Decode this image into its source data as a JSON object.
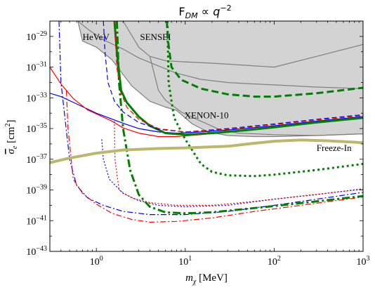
{
  "chart_data": {
    "type": "line",
    "title": "F_DM ∝ q^-2",
    "title_parts": {
      "main": "F",
      "sub": "DM",
      "rel": " ∝ ",
      "var": "q",
      "sup": "−2"
    },
    "xlabel": {
      "var": "m",
      "sub": "χ",
      "unit": " [MeV]"
    },
    "ylabel": {
      "var": "σ",
      "sub": "e",
      "unit": " [cm",
      "sup": "2",
      "close": "]"
    },
    "x_scale": "log",
    "y_scale": "log",
    "xlim": [
      0.3,
      1000
    ],
    "ylim": [
      1e-43,
      1e-28
    ],
    "x_ticks": [
      {
        "value": 1,
        "base": "10",
        "exp": "0"
      },
      {
        "value": 10,
        "base": "10",
        "exp": "1"
      },
      {
        "value": 100,
        "base": "10",
        "exp": "2"
      },
      {
        "value": 1000,
        "base": "10",
        "exp": "3"
      }
    ],
    "y_ticks": [
      {
        "value": -43,
        "base": "10",
        "exp": "−43"
      },
      {
        "value": -41,
        "base": "10",
        "exp": "−41"
      },
      {
        "value": -39,
        "base": "10",
        "exp": "−39"
      },
      {
        "value": -37,
        "base": "10",
        "exp": "−37"
      },
      {
        "value": -35,
        "base": "10",
        "exp": "−35"
      },
      {
        "value": -33,
        "base": "10",
        "exp": "−33"
      },
      {
        "value": -31,
        "base": "10",
        "exp": "−31"
      },
      {
        "value": -29,
        "base": "10",
        "exp": "−29"
      }
    ],
    "grid": false,
    "excluded_region": {
      "fill": "#d3d3d3",
      "boundary": [
        [
          0.62,
          1e-28
        ],
        [
          0.7,
          5e-30
        ],
        [
          1.0,
          2e-30
        ],
        [
          1.5,
          3e-31
        ],
        [
          2.5,
          6e-33
        ],
        [
          4.0,
          6e-34
        ],
        [
          6.0,
          2.5e-34
        ],
        [
          8.0,
          1.5e-34
        ],
        [
          12,
          2e-35
        ],
        [
          18,
          6e-36
        ],
        [
          30,
          3.5e-36
        ],
        [
          60,
          3e-36
        ],
        [
          100,
          3e-36
        ],
        [
          300,
          3.5e-36
        ],
        [
          1000,
          4.5e-36
        ]
      ],
      "inner_lines": [
        {
          "name": "HeVeV",
          "points": [
            [
              0.62,
              1e-28
            ],
            [
              0.8,
              3e-29
            ],
            [
              1.2,
              6e-30
            ],
            [
              2.0,
              1.5e-30
            ],
            [
              3.0,
              4e-31
            ],
            [
              5.0,
              1.2e-31
            ],
            [
              8.0,
              4e-32
            ],
            [
              15,
              1.6e-32
            ],
            [
              30,
              1e-32
            ],
            [
              60,
              8e-33
            ],
            [
              100,
              7e-33
            ],
            [
              300,
              5e-33
            ],
            [
              1000,
              4e-33
            ]
          ]
        },
        {
          "name": "SENSEI",
          "points": [
            [
              2.0,
              1e-28
            ],
            [
              3.0,
              2e-30
            ],
            [
              4.0,
              5e-31
            ],
            [
              6.0,
              2.6e-31
            ],
            [
              10,
              2.2e-31
            ],
            [
              20,
              1.8e-31
            ],
            [
              50,
              1.3e-31
            ],
            [
              100,
              1e-31
            ],
            [
              300,
              5e-31
            ],
            [
              1000,
              3e-30
            ]
          ]
        },
        {
          "name": "XENON10",
          "points": [
            [
              4.0,
              5e-31
            ],
            [
              5.0,
              3e-33
            ],
            [
              6.0,
              7e-34
            ],
            [
              9,
              1.2e-34
            ],
            [
              15,
              3e-35
            ],
            [
              25,
              8e-36
            ],
            [
              40,
              5e-36
            ],
            [
              100,
              4e-36
            ],
            [
              300,
              3.5e-36
            ],
            [
              1000,
              4.5e-36
            ]
          ]
        }
      ]
    },
    "region_labels": [
      {
        "text": "HeVeV",
        "x": 0.7,
        "y": 1e-29
      },
      {
        "text": "SENSEI",
        "x": 3.1,
        "y": 1e-29
      },
      {
        "text": "XENON-10",
        "x": 9.8,
        "y": 8e-35
      },
      {
        "text": "Freeze-In",
        "x": 300,
        "y": 6e-37
      }
    ],
    "series": [
      {
        "color": "#0000ff",
        "style": "solid",
        "width": 1.2,
        "points": [
          [
            0.3,
            2e-33
          ],
          [
            0.4,
            1.2e-33
          ],
          [
            0.6,
            4e-34
          ],
          [
            1.0,
            1e-34
          ],
          [
            2.0,
            2.2e-35
          ],
          [
            3.0,
            1e-35
          ],
          [
            5.0,
            6e-36
          ],
          [
            8.0,
            5e-36
          ],
          [
            15,
            6e-36
          ],
          [
            30,
            8e-36
          ],
          [
            100,
            1.5e-35
          ],
          [
            300,
            3e-35
          ],
          [
            1000,
            6e-35
          ]
        ]
      },
      {
        "color": "#ff0000",
        "style": "solid",
        "width": 1.2,
        "points": [
          [
            0.3,
            1e-31
          ],
          [
            0.4,
            8e-33
          ],
          [
            0.55,
            9e-34
          ],
          [
            0.8,
            1.6e-34
          ],
          [
            1.0,
            9e-35
          ],
          [
            1.5,
            3e-35
          ],
          [
            2.0,
            1.1e-35
          ],
          [
            3.0,
            5e-36
          ],
          [
            5.0,
            3e-36
          ],
          [
            8.0,
            3e-36
          ],
          [
            15,
            4e-36
          ],
          [
            30,
            6e-36
          ],
          [
            100,
            1.2e-35
          ],
          [
            300,
            2.5e-35
          ],
          [
            1000,
            5e-35
          ]
        ]
      },
      {
        "color": "#008000",
        "style": "solid",
        "width": 3,
        "points": [
          [
            1.6,
            1e-28
          ],
          [
            1.7,
            1e-30
          ],
          [
            1.9,
            3e-33
          ],
          [
            2.2,
            5e-34
          ],
          [
            3.0,
            6e-35
          ],
          [
            4.0,
            1.5e-35
          ],
          [
            6.0,
            5e-36
          ],
          [
            10,
            4e-36
          ],
          [
            20,
            5e-36
          ],
          [
            50,
            8e-36
          ],
          [
            100,
            1.2e-35
          ],
          [
            300,
            2.5e-35
          ],
          [
            1000,
            5e-35
          ]
        ]
      },
      {
        "color": "#0000ff",
        "style": "dashed",
        "width": 1.2,
        "points": [
          [
            1.2,
            1e-28
          ],
          [
            1.25,
            1e-30
          ],
          [
            1.35,
            1e-32
          ],
          [
            1.6,
            6e-34
          ],
          [
            2.0,
            1.2e-34
          ],
          [
            3.0,
            2.5e-35
          ],
          [
            5.0,
            9e-36
          ],
          [
            10,
            6e-36
          ],
          [
            30,
            1e-35
          ],
          [
            100,
            2e-35
          ],
          [
            300,
            4e-35
          ],
          [
            1000,
            8e-35
          ]
        ]
      },
      {
        "color": "#ff0000",
        "style": "dashed",
        "width": 1.2,
        "points": [
          [
            1.6,
            1e-28
          ],
          [
            1.7,
            1e-31
          ],
          [
            1.85,
            3e-33
          ],
          [
            2.2,
            2.5e-34
          ],
          [
            3.0,
            4e-35
          ],
          [
            5.0,
            1e-35
          ],
          [
            10,
            6e-36
          ],
          [
            30,
            9e-36
          ],
          [
            100,
            1.8e-35
          ],
          [
            300,
            3.5e-35
          ],
          [
            1000,
            7e-35
          ]
        ]
      },
      {
        "color": "#008000",
        "style": "dashed",
        "width": 3,
        "points": [
          [
            6.2,
            1e-28
          ],
          [
            6.4,
            5e-30
          ],
          [
            7.0,
            1e-31
          ],
          [
            9,
            1.5e-32
          ],
          [
            15,
            4e-33
          ],
          [
            30,
            1.7e-33
          ],
          [
            60,
            1.2e-33
          ],
          [
            100,
            1.2e-33
          ],
          [
            300,
            2e-33
          ],
          [
            1000,
            4.5e-33
          ]
        ]
      },
      {
        "color": "#0000ff",
        "style": "dotted",
        "width": 1.2,
        "points": [
          [
            1.15,
            2e-36
          ],
          [
            1.2,
            1e-37
          ],
          [
            1.4,
            5e-39
          ],
          [
            2.0,
            6e-40
          ],
          [
            3.0,
            2e-40
          ],
          [
            5.0,
            1e-40
          ],
          [
            10,
            8e-41
          ],
          [
            30,
            1e-40
          ],
          [
            100,
            2.5e-40
          ],
          [
            300,
            5e-40
          ],
          [
            1000,
            1.2e-39
          ]
        ]
      },
      {
        "color": "#ff0000",
        "style": "dotted",
        "width": 1.2,
        "points": [
          [
            1.6,
            3e-35
          ],
          [
            1.62,
            1e-37
          ],
          [
            1.8,
            1e-39
          ],
          [
            2.5,
            3e-40
          ],
          [
            4.0,
            1.5e-40
          ],
          [
            8.0,
            1e-40
          ],
          [
            20,
            1e-40
          ],
          [
            60,
            1.8e-40
          ],
          [
            200,
            4e-40
          ],
          [
            1000,
            1.1e-39
          ]
        ]
      },
      {
        "color": "#008000",
        "style": "dotted",
        "width": 3,
        "points": [
          [
            6.3,
            1e-28
          ],
          [
            6.5,
            1e-32
          ],
          [
            7.5,
            5e-35
          ],
          [
            10,
            2e-36
          ],
          [
            15,
            5e-38
          ],
          [
            20,
            1.5e-38
          ],
          [
            30,
            9e-39
          ],
          [
            60,
            8e-39
          ],
          [
            100,
            1e-38
          ],
          [
            300,
            2e-38
          ],
          [
            1000,
            5e-38
          ]
        ]
      },
      {
        "color": "#0000ff",
        "style": "dashdot",
        "width": 1.2,
        "points": [
          [
            0.38,
            1e-28
          ],
          [
            0.4,
            1e-32
          ],
          [
            0.5,
            1e-37
          ],
          [
            0.6,
            2e-39
          ],
          [
            0.8,
            3e-40
          ],
          [
            1.2,
            1e-40
          ],
          [
            2.0,
            4e-41
          ],
          [
            4.0,
            2.5e-41
          ],
          [
            10,
            2.5e-41
          ],
          [
            30,
            4e-41
          ],
          [
            100,
            1e-40
          ],
          [
            300,
            2.5e-40
          ],
          [
            1000,
            7e-40
          ]
        ]
      },
      {
        "color": "#ff0000",
        "style": "dashdot",
        "width": 1.2,
        "points": [
          [
            0.46,
            3e-33
          ],
          [
            0.48,
            1e-35
          ],
          [
            0.55,
            5e-39
          ],
          [
            0.7,
            6e-40
          ],
          [
            1.0,
            1.2e-40
          ],
          [
            1.5,
            3e-41
          ],
          [
            2.5,
            1.2e-41
          ],
          [
            4.0,
            8e-42
          ],
          [
            8.0,
            9e-42
          ],
          [
            20,
            1.5e-41
          ],
          [
            60,
            4e-41
          ],
          [
            200,
            1e-40
          ],
          [
            1000,
            3.5e-40
          ]
        ]
      },
      {
        "color": "#008000",
        "style": "dashdot",
        "width": 3,
        "points": [
          [
            1.7,
            1e-28
          ],
          [
            1.8,
            1e-32
          ],
          [
            2.0,
            1e-35
          ],
          [
            2.4,
            2e-38
          ],
          [
            3.0,
            5e-40
          ],
          [
            4.0,
            8e-41
          ],
          [
            6.0,
            3.5e-41
          ],
          [
            10,
            3e-41
          ],
          [
            20,
            3.5e-41
          ],
          [
            50,
            6e-41
          ],
          [
            100,
            9e-41
          ],
          [
            300,
            1.8e-40
          ],
          [
            1000,
            4e-40
          ]
        ]
      },
      {
        "color": "#bdb76b",
        "style": "solid",
        "width": 4,
        "points": [
          [
            0.3,
            6e-38
          ],
          [
            0.5,
            1.2e-37
          ],
          [
            1.0,
            2.5e-37
          ],
          [
            2.0,
            4e-37
          ],
          [
            5.0,
            5e-37
          ],
          [
            10,
            5.5e-37
          ],
          [
            30,
            7e-37
          ],
          [
            60,
            1.1e-36
          ],
          [
            100,
            1.5e-36
          ],
          [
            200,
            1.8e-36
          ],
          [
            400,
            1.6e-36
          ],
          [
            1000,
            1.2e-36
          ]
        ]
      }
    ]
  }
}
